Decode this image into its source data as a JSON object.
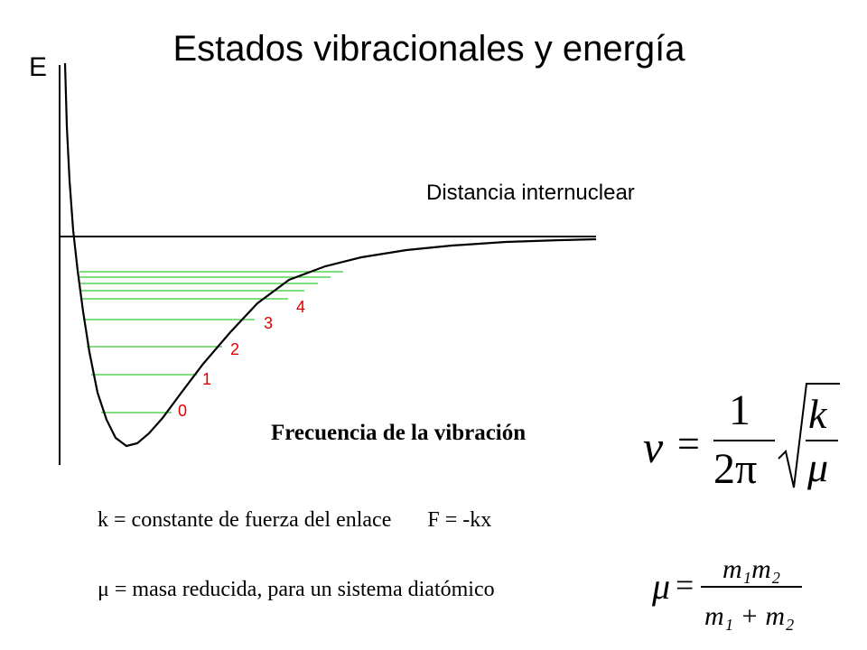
{
  "title": "Estados vibracionales y energía",
  "axes": {
    "y_label": "E",
    "x_label": "Distancia internuclear"
  },
  "levels": [
    {
      "label": "0"
    },
    {
      "label": "1"
    },
    {
      "label": "2"
    },
    {
      "label": "3"
    },
    {
      "label": "4"
    }
  ],
  "colors": {
    "curve": "#000000",
    "levels": "#33cc33",
    "level_labels": "#e00000"
  },
  "frequency": {
    "label": "Frecuencia de la vibración",
    "nu": "ν",
    "equals": "=",
    "numerator": "1",
    "denominator": "2π",
    "k": "k",
    "mu": "μ"
  },
  "definitions": {
    "k_def": "k = constante de fuerza del enlace",
    "hooke": "F = -kx",
    "mu_def": "μ = masa reducida, para un sistema diatómico"
  },
  "reduced_mass": {
    "mu": "μ",
    "equals": "=",
    "numerator": "m₁m₂",
    "denominator": "m₁ + m₂"
  }
}
